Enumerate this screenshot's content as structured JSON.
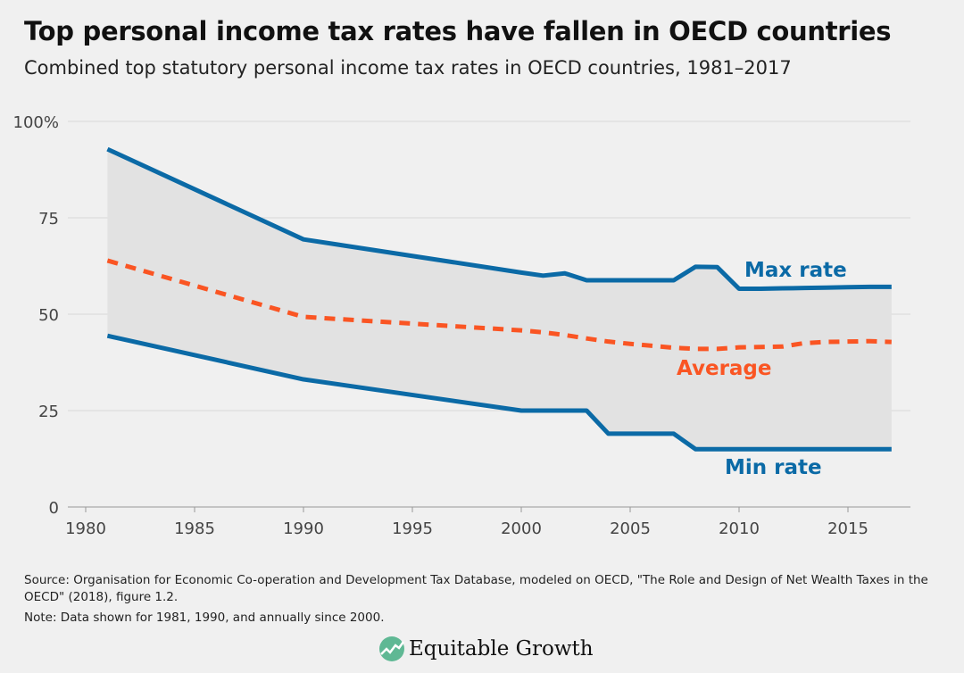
{
  "title": "Top personal income tax rates have fallen in OECD countries",
  "subtitle": "Combined top statutory personal income tax rates in OECD countries, 1981–2017",
  "source": "Source: Organisation for Economic Co-operation and Development Tax Database, modeled on OECD, \"The Role and Design of Net Wealth Taxes in the OECD\" (2018), figure 1.2.",
  "note": "Note: Data shown for 1981, 1990, and annually since 2000.",
  "logo_text": "Equitable Growth",
  "chart_data": {
    "type": "line",
    "title": "",
    "xlabel": "",
    "ylabel": "",
    "xlim": [
      1980,
      2017
    ],
    "ylim": [
      0,
      100
    ],
    "x_ticks": [
      1980,
      1985,
      1990,
      1995,
      2000,
      2005,
      2010,
      2015
    ],
    "y_ticks": [
      0,
      25,
      50,
      75,
      100
    ],
    "y_tick_labels": [
      "0",
      "25",
      "50",
      "75",
      "100%"
    ],
    "grid": "horizontal",
    "x": [
      1981,
      1990,
      2000,
      2001,
      2002,
      2003,
      2004,
      2005,
      2006,
      2007,
      2008,
      2009,
      2010,
      2011,
      2012,
      2013,
      2014,
      2015,
      2016,
      2017
    ],
    "series": [
      {
        "name": "Max rate",
        "color": "#0b6aa6",
        "style": "solid",
        "values": [
          92.8,
          69.4,
          60.8,
          60.0,
          60.6,
          58.8,
          58.8,
          58.8,
          58.8,
          58.8,
          62.3,
          62.2,
          56.6,
          56.6,
          56.7,
          56.8,
          56.9,
          57.0,
          57.1,
          57.1
        ]
      },
      {
        "name": "Average",
        "color": "#fa5523",
        "style": "dashed",
        "values": [
          63.9,
          49.3,
          45.8,
          45.3,
          44.6,
          43.7,
          42.9,
          42.3,
          41.8,
          41.3,
          41.0,
          41.0,
          41.4,
          41.5,
          41.6,
          42.5,
          42.8,
          42.9,
          43.0,
          42.8
        ]
      },
      {
        "name": "Min rate",
        "color": "#0b6aa6",
        "style": "solid",
        "values": [
          44.4,
          33.1,
          25,
          25,
          25,
          25,
          19,
          19,
          19,
          19,
          15,
          15,
          15,
          15,
          15,
          15,
          15,
          15,
          15,
          15
        ]
      }
    ],
    "band_fill": "#e2e2e2"
  }
}
